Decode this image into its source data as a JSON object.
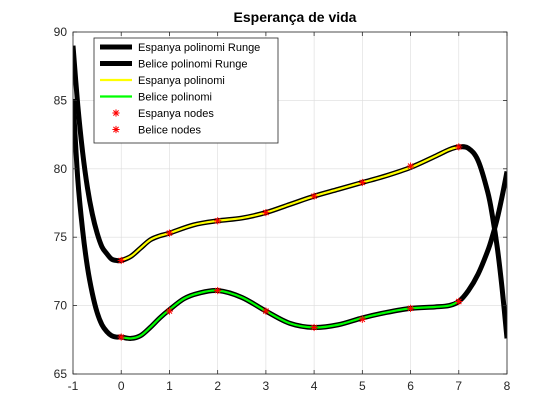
{
  "chart_data": {
    "type": "line",
    "title": "Esperança de vida",
    "xlabel": "",
    "ylabel": "",
    "xlim": [
      -1,
      8
    ],
    "ylim": [
      65,
      90
    ],
    "x_ticks": [
      -1,
      0,
      1,
      2,
      3,
      4,
      5,
      6,
      7,
      8
    ],
    "y_ticks": [
      65,
      70,
      75,
      80,
      85,
      90
    ],
    "grid": true,
    "legend_placement": "top-left",
    "series": [
      {
        "name": "Espanya polinomi Runge",
        "kind": "line",
        "color": "#000000",
        "x": [
          -1,
          -0.9,
          -0.8,
          -0.7,
          -0.6,
          -0.5,
          -0.4,
          -0.3,
          -0.2,
          -0.1,
          0,
          0.2,
          0.4,
          0.6,
          0.8,
          1,
          1.5,
          2,
          2.5,
          3,
          3.5,
          4,
          4.5,
          5,
          5.5,
          6,
          6.5,
          6.8,
          7,
          7.2,
          7.4,
          7.6,
          7.7,
          7.8,
          7.9,
          8
        ],
        "y": [
          89,
          84.6,
          81.2,
          78.6,
          76.7,
          75.3,
          74.3,
          73.8,
          73.4,
          73.3,
          73.3,
          73.6,
          74.2,
          74.8,
          75.1,
          75.3,
          75.9,
          76.2,
          76.4,
          76.8,
          77.4,
          78.0,
          78.5,
          79.0,
          79.5,
          80.1,
          80.9,
          81.4,
          81.6,
          81.5,
          80.6,
          78.3,
          76.5,
          74.2,
          71.2,
          67.6
        ]
      },
      {
        "name": "Belice polinomi Runge",
        "kind": "line",
        "color": "#000000",
        "x": [
          -1,
          -0.9,
          -0.8,
          -0.7,
          -0.6,
          -0.5,
          -0.4,
          -0.3,
          -0.2,
          -0.1,
          0,
          0.2,
          0.4,
          0.6,
          0.8,
          1,
          1.3,
          1.6,
          2,
          2.5,
          3,
          3.5,
          4,
          4.5,
          5,
          5.5,
          6,
          6.5,
          6.8,
          7,
          7.2,
          7.4,
          7.6,
          7.7,
          7.8,
          7.9,
          8
        ],
        "y": [
          85.1,
          79.2,
          75.5,
          72.8,
          70.9,
          69.5,
          68.6,
          68.1,
          67.8,
          67.7,
          67.7,
          67.6,
          67.8,
          68.4,
          69.1,
          69.7,
          70.5,
          70.9,
          71.1,
          70.6,
          69.6,
          68.7,
          68.4,
          68.6,
          69.1,
          69.5,
          69.8,
          69.9,
          70.0,
          70.3,
          71.1,
          72.3,
          74.0,
          75.1,
          76.4,
          78.0,
          79.8
        ]
      },
      {
        "name": "Espanya polinomi",
        "kind": "line",
        "color": "#ffff00",
        "x": [
          0,
          0.2,
          0.4,
          0.6,
          0.8,
          1,
          1.5,
          2,
          2.5,
          3,
          3.5,
          4,
          4.5,
          5,
          5.5,
          6,
          6.5,
          6.8,
          7
        ],
        "y": [
          73.3,
          73.6,
          74.2,
          74.8,
          75.1,
          75.3,
          75.9,
          76.2,
          76.4,
          76.8,
          77.4,
          78.0,
          78.5,
          79.0,
          79.5,
          80.1,
          80.9,
          81.4,
          81.6
        ]
      },
      {
        "name": "Belice polinomi",
        "kind": "line",
        "color": "#00ff00",
        "x": [
          0,
          0.2,
          0.4,
          0.6,
          0.8,
          1,
          1.3,
          1.6,
          2,
          2.5,
          3,
          3.5,
          4,
          4.5,
          5,
          5.5,
          6,
          6.5,
          6.8,
          7
        ],
        "y": [
          67.7,
          67.6,
          67.8,
          68.4,
          69.1,
          69.7,
          70.5,
          70.9,
          71.1,
          70.6,
          69.6,
          68.7,
          68.4,
          68.6,
          69.1,
          69.5,
          69.8,
          69.9,
          70.0,
          70.3
        ]
      },
      {
        "name": "Espanya nodes",
        "kind": "marker",
        "color": "#ff0000",
        "x": [
          0,
          1,
          2,
          3,
          4,
          5,
          6,
          7
        ],
        "y": [
          73.3,
          75.3,
          76.2,
          76.8,
          78.0,
          79.0,
          80.2,
          81.6
        ]
      },
      {
        "name": "Belice nodes",
        "kind": "marker",
        "color": "#ff0000",
        "x": [
          0,
          1,
          2,
          3,
          4,
          5,
          6,
          7
        ],
        "y": [
          67.7,
          69.6,
          71.1,
          69.6,
          68.4,
          69.0,
          69.8,
          70.3
        ]
      }
    ]
  }
}
